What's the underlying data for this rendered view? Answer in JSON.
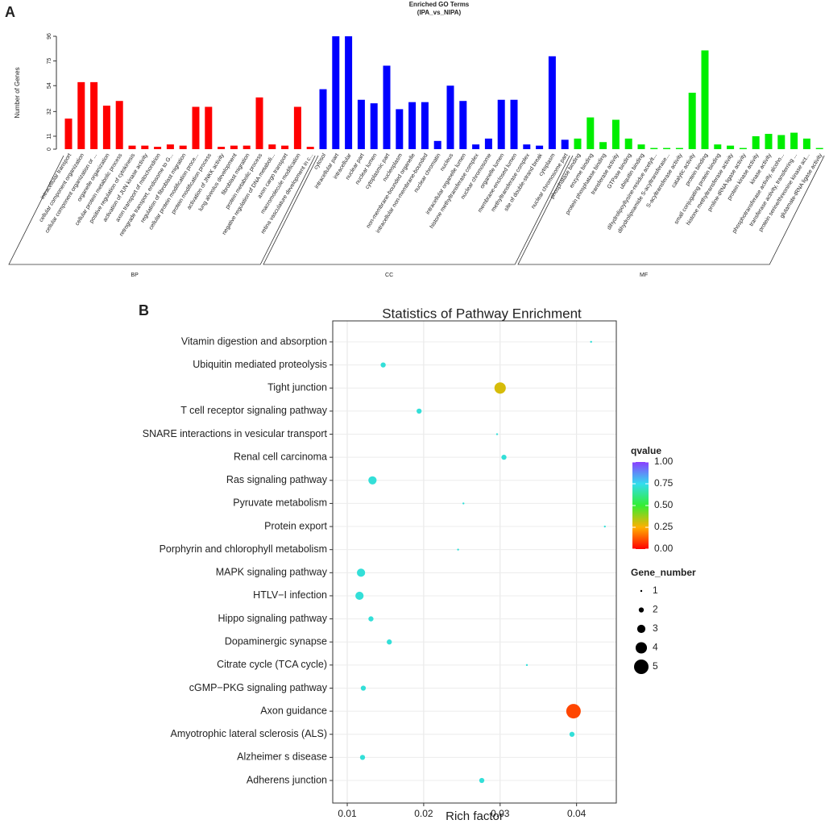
{
  "chart_data": [
    {
      "type": "bar",
      "panel": "A",
      "title": "Enriched GO Terms",
      "subtitle": "(IPA_vs_NIPA)",
      "y_label": "Number of Genes",
      "ylim": [
        0,
        96
      ],
      "yticks": [
        0,
        11,
        32,
        54,
        75,
        96
      ],
      "groups": [
        {
          "name": "BP",
          "color": "#ff0000",
          "categories": [
            "intracellular transport",
            "cellular component organization",
            "cellular component organization or ...",
            "organelle organization",
            "cellular protein metabolic process",
            "positive regulation of cytokinesis",
            "activation of JUN kinase activity",
            "axon transport of mitochondrion",
            "retrograde transport, endosome to G...",
            "regulation of fibroblast migration",
            "cellular protein modification proce...",
            "protein modification process",
            "activation of JNKK activity",
            "lung alveolus development",
            "fibroblast migration",
            "protein metabolic process",
            "negative regulation of DNA metaboli...",
            "axon cargo transport",
            "macromolecule modification",
            "retina vasculature development in c..."
          ],
          "values": [
            26,
            57,
            57,
            37,
            41,
            3,
            3,
            2,
            4,
            3,
            36,
            36,
            2,
            3,
            3,
            44,
            4,
            3,
            36,
            2
          ]
        },
        {
          "name": "CC",
          "color": "#0000ff",
          "categories": [
            "cytosol",
            "intracellular part",
            "intracellular",
            "nuclear part",
            "nuclear lumen",
            "cytoplasmic part",
            "nucleoplasm",
            "non-membrane-bounded organelle",
            "intracellular non-membrane-bounded",
            "nuclear chromatin",
            "nucleus",
            "intracellular organelle lumen",
            "histone methyltransferase complex",
            "nuclear chromosome",
            "organelle lumen",
            "membrane-enclosed lumen",
            "methyltransferase complex",
            "site of double-strand break",
            "cytoplasm",
            "nuclear chromosome part"
          ],
          "values": [
            51,
            96,
            96,
            42,
            39,
            71,
            34,
            40,
            40,
            7,
            54,
            41,
            4,
            9,
            42,
            42,
            4,
            3,
            79,
            8
          ]
        },
        {
          "name": "MF",
          "color": "#00ee00",
          "categories": [
            "phosphatase binding",
            "enzyme binding",
            "protein phosphatase binding",
            "transferase activity",
            "GTPase binding",
            "ubiquitin binding",
            "dihydrolipoyllysine-residue acetylt...",
            "dihydrolipoamide S-acyltransferase...",
            "S-acyltransferase activity",
            "catalytic activity",
            "protein binding",
            "small conjugating protein binding",
            "histone methyltransferase activity",
            "proline-tRNA ligase activity",
            "protein kinase activity",
            "kinase activity",
            "phosphotransferase activity, alcoho...",
            "transferase activity, transferring ...",
            "protein serine/threonine kinase act...",
            "glutamate-tRNA ligase activity"
          ],
          "values": [
            9,
            27,
            6,
            25,
            9,
            4,
            1,
            1,
            1,
            48,
            84,
            4,
            3,
            1,
            11,
            13,
            12,
            14,
            9,
            1
          ]
        }
      ]
    },
    {
      "type": "scatter",
      "panel": "B",
      "title": "Statistics of Pathway Enrichment",
      "x_label": "Rich factor",
      "categories": [
        "Vitamin digestion and absorption",
        "Ubiquitin mediated proteolysis",
        "Tight junction",
        "T cell receptor signaling pathway",
        "SNARE interactions in vesicular transport",
        "Renal cell carcinoma",
        "Ras signaling pathway",
        "Pyruvate metabolism",
        "Protein export",
        "Porphyrin and chlorophyll metabolism",
        "MAPK signaling pathway",
        "HTLV−I infection",
        "Hippo signaling pathway",
        "Dopaminergic synapse",
        "Citrate cycle (TCA cycle)",
        "cGMP−PKG signaling pathway",
        "Axon guidance",
        "Amyotrophic lateral sclerosis (ALS)",
        "Alzheimer s disease",
        "Adherens junction"
      ],
      "x": [
        0.0419,
        0.0147,
        0.03,
        0.0194,
        0.0296,
        0.0305,
        0.0133,
        0.0252,
        0.0437,
        0.0245,
        0.0118,
        0.0116,
        0.0131,
        0.0155,
        0.0335,
        0.0121,
        0.0396,
        0.0394,
        0.012,
        0.0276
      ],
      "gene_number": [
        1,
        2,
        4,
        2,
        1,
        2,
        3,
        1,
        1,
        1,
        3,
        3,
        2,
        2,
        1,
        2,
        5,
        2,
        2,
        2
      ],
      "qvalue": [
        0.72,
        0.72,
        0.3,
        0.72,
        0.72,
        0.72,
        0.72,
        0.72,
        0.72,
        0.72,
        0.72,
        0.72,
        0.72,
        0.72,
        0.72,
        0.72,
        0.1,
        0.72,
        0.72,
        0.72
      ],
      "xlim": [
        0.0081,
        0.0452
      ],
      "xticks": [
        0.01,
        0.02,
        0.03,
        0.04
      ],
      "grid": true,
      "color_title": "qvalue",
      "qlim": [
        0,
        1
      ],
      "color_stops": [
        "#ff0000",
        "#ffb000",
        "#33ee33",
        "#33ddee",
        "#8a3dff"
      ],
      "color_ticks": [
        {
          "value": 0,
          "label": "0.00"
        },
        {
          "value": 0.25,
          "label": "0.25"
        },
        {
          "value": 0.5,
          "label": "0.50"
        },
        {
          "value": 0.75,
          "label": "0.75"
        },
        {
          "value": 1,
          "label": "1.00"
        }
      ],
      "size_title": "Gene_number",
      "size_legend": [
        1,
        2,
        3,
        4,
        5
      ]
    }
  ]
}
